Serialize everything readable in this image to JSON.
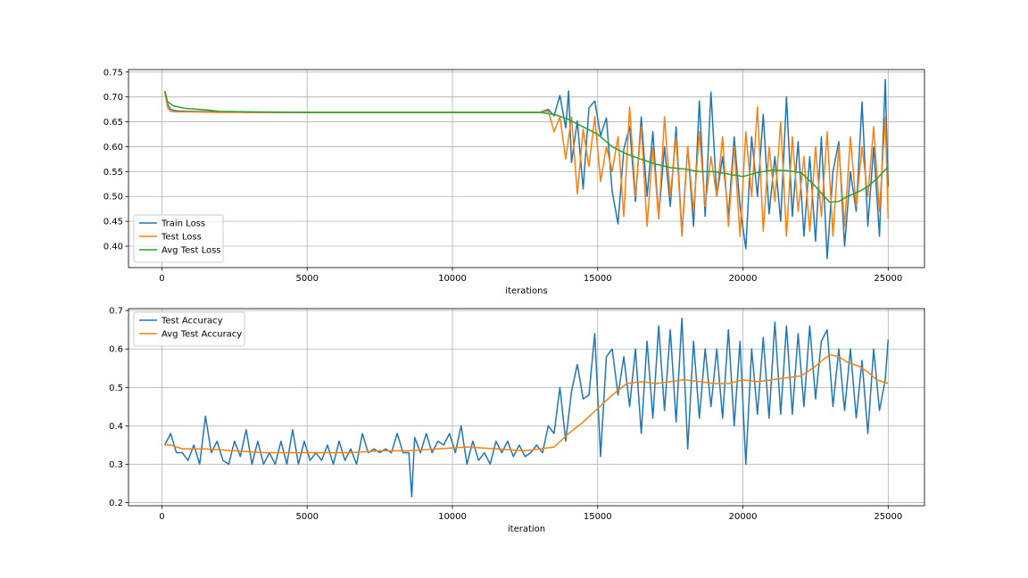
{
  "chart_data": [
    {
      "type": "line",
      "xlabel": "iterations",
      "ylabel": "",
      "xlim": [
        -1150,
        26250
      ],
      "ylim": [
        0.357,
        0.755
      ],
      "xticks": [
        0,
        5000,
        10000,
        15000,
        20000,
        25000
      ],
      "yticks": [
        0.4,
        0.45,
        0.5,
        0.55,
        0.6,
        0.65,
        0.7,
        0.75
      ],
      "ytick_labels": [
        "0.40",
        "0.45",
        "0.50",
        "0.55",
        "0.60",
        "0.65",
        "0.70",
        "0.75"
      ],
      "grid": true,
      "legend": "lower-left",
      "series": [
        {
          "name": "Train Loss",
          "color": "#1f77b4",
          "x": [
            100,
            200,
            300,
            500,
            1000,
            2000,
            3000,
            5000,
            7000,
            9000,
            11000,
            13000,
            13300,
            13500,
            13700,
            13900,
            14000,
            14100,
            14300,
            14500,
            14700,
            14900,
            15100,
            15300,
            15500,
            15700,
            15900,
            16100,
            16300,
            16500,
            16700,
            16900,
            17100,
            17300,
            17500,
            17700,
            17900,
            18100,
            18300,
            18500,
            18700,
            18900,
            19100,
            19300,
            19500,
            19700,
            19900,
            20100,
            20300,
            20500,
            20700,
            20900,
            21100,
            21300,
            21500,
            21700,
            21900,
            22100,
            22300,
            22500,
            22700,
            22900,
            23100,
            23300,
            23500,
            23700,
            23900,
            24100,
            24300,
            24500,
            24700,
            24900,
            25000
          ],
          "y": [
            0.71,
            0.685,
            0.675,
            0.672,
            0.671,
            0.67,
            0.669,
            0.669,
            0.669,
            0.669,
            0.669,
            0.669,
            0.675,
            0.662,
            0.703,
            0.638,
            0.712,
            0.568,
            0.652,
            0.515,
            0.678,
            0.692,
            0.622,
            0.658,
            0.51,
            0.445,
            0.595,
            0.64,
            0.49,
            0.66,
            0.5,
            0.63,
            0.457,
            0.6,
            0.48,
            0.64,
            0.425,
            0.6,
            0.44,
            0.692,
            0.46,
            0.71,
            0.5,
            0.58,
            0.46,
            0.62,
            0.48,
            0.395,
            0.62,
            0.5,
            0.665,
            0.465,
            0.58,
            0.45,
            0.7,
            0.46,
            0.61,
            0.42,
            0.58,
            0.41,
            0.62,
            0.375,
            0.55,
            0.61,
            0.4,
            0.55,
            0.47,
            0.69,
            0.44,
            0.6,
            0.42,
            0.735,
            0.52
          ]
        },
        {
          "name": "Test Loss",
          "color": "#ff7f0e",
          "x": [
            100,
            200,
            300,
            500,
            1000,
            2000,
            3000,
            5000,
            7000,
            9000,
            11000,
            13000,
            13300,
            13500,
            13700,
            13900,
            14100,
            14300,
            14500,
            14700,
            14900,
            15100,
            15300,
            15500,
            15700,
            15900,
            16100,
            16300,
            16500,
            16700,
            16900,
            17100,
            17300,
            17500,
            17700,
            17900,
            18100,
            18300,
            18500,
            18700,
            18900,
            19100,
            19300,
            19500,
            19700,
            19900,
            20100,
            20300,
            20500,
            20700,
            20900,
            21100,
            21300,
            21500,
            21700,
            21900,
            22100,
            22300,
            22500,
            22700,
            22900,
            23100,
            23300,
            23500,
            23700,
            23900,
            24100,
            24300,
            24500,
            24700,
            24900,
            25000
          ],
          "y": [
            0.71,
            0.678,
            0.671,
            0.67,
            0.67,
            0.669,
            0.669,
            0.669,
            0.669,
            0.669,
            0.669,
            0.669,
            0.672,
            0.63,
            0.66,
            0.575,
            0.66,
            0.505,
            0.635,
            0.56,
            0.66,
            0.53,
            0.6,
            0.55,
            0.62,
            0.46,
            0.68,
            0.5,
            0.64,
            0.44,
            0.6,
            0.455,
            0.66,
            0.5,
            0.62,
            0.42,
            0.6,
            0.47,
            0.63,
            0.48,
            0.58,
            0.5,
            0.62,
            0.44,
            0.6,
            0.42,
            0.63,
            0.5,
            0.68,
            0.43,
            0.6,
            0.49,
            0.65,
            0.42,
            0.62,
            0.47,
            0.58,
            0.43,
            0.6,
            0.46,
            0.63,
            0.42,
            0.6,
            0.44,
            0.62,
            0.48,
            0.6,
            0.5,
            0.64,
            0.47,
            0.66,
            0.455
          ]
        },
        {
          "name": "Avg Test Loss",
          "color": "#2ca02c",
          "x": [
            100,
            200,
            400,
            800,
            1500,
            2000,
            3000,
            5000,
            7000,
            9000,
            11000,
            13000,
            13500,
            14000,
            14500,
            15000,
            15500,
            16000,
            16500,
            17000,
            17500,
            18000,
            18500,
            19000,
            19500,
            20000,
            20500,
            21000,
            21500,
            22000,
            22500,
            22800,
            23000,
            23300,
            23600,
            24000,
            24300,
            24600,
            25000
          ],
          "y": [
            0.712,
            0.69,
            0.682,
            0.677,
            0.674,
            0.671,
            0.67,
            0.669,
            0.669,
            0.669,
            0.669,
            0.669,
            0.665,
            0.655,
            0.64,
            0.625,
            0.6,
            0.585,
            0.575,
            0.565,
            0.558,
            0.555,
            0.55,
            0.55,
            0.545,
            0.54,
            0.548,
            0.553,
            0.552,
            0.548,
            0.52,
            0.5,
            0.488,
            0.49,
            0.5,
            0.51,
            0.52,
            0.535,
            0.56
          ]
        }
      ]
    },
    {
      "type": "line",
      "xlabel": "iteration",
      "ylabel": "",
      "xlim": [
        -1150,
        26250
      ],
      "ylim": [
        0.192,
        0.705
      ],
      "xticks": [
        0,
        5000,
        10000,
        15000,
        20000,
        25000
      ],
      "yticks": [
        0.2,
        0.3,
        0.4,
        0.5,
        0.6,
        0.7
      ],
      "ytick_labels": [
        "0.2",
        "0.3",
        "0.4",
        "0.5",
        "0.6",
        "0.7"
      ],
      "grid": true,
      "legend": "upper-left",
      "series": [
        {
          "name": "Test Accuracy",
          "color": "#1f77b4",
          "x": [
            100,
            300,
            500,
            700,
            900,
            1100,
            1300,
            1500,
            1700,
            1900,
            2100,
            2300,
            2500,
            2700,
            2900,
            3100,
            3300,
            3500,
            3700,
            3900,
            4100,
            4300,
            4500,
            4700,
            4900,
            5100,
            5300,
            5500,
            5700,
            5900,
            6100,
            6300,
            6500,
            6700,
            6900,
            7100,
            7300,
            7500,
            7700,
            7900,
            8100,
            8300,
            8500,
            8600,
            8700,
            8900,
            9100,
            9300,
            9500,
            9700,
            9900,
            10100,
            10300,
            10500,
            10700,
            10900,
            11100,
            11300,
            11500,
            11700,
            11900,
            12100,
            12300,
            12500,
            12700,
            12900,
            13100,
            13300,
            13500,
            13700,
            13900,
            14100,
            14300,
            14500,
            14700,
            14900,
            15100,
            15300,
            15500,
            15700,
            15900,
            16100,
            16300,
            16500,
            16700,
            16900,
            17100,
            17300,
            17500,
            17700,
            17900,
            18100,
            18300,
            18500,
            18700,
            18900,
            19100,
            19300,
            19500,
            19700,
            19900,
            20100,
            20300,
            20500,
            20700,
            20900,
            21100,
            21300,
            21500,
            21700,
            21900,
            22100,
            22300,
            22500,
            22700,
            22900,
            23100,
            23300,
            23500,
            23700,
            23900,
            24100,
            24300,
            24500,
            24700,
            24900,
            25000
          ],
          "y": [
            0.35,
            0.38,
            0.33,
            0.33,
            0.31,
            0.35,
            0.3,
            0.425,
            0.33,
            0.36,
            0.31,
            0.3,
            0.36,
            0.32,
            0.39,
            0.3,
            0.36,
            0.3,
            0.33,
            0.3,
            0.36,
            0.3,
            0.39,
            0.3,
            0.36,
            0.31,
            0.33,
            0.31,
            0.35,
            0.3,
            0.36,
            0.31,
            0.34,
            0.3,
            0.38,
            0.33,
            0.34,
            0.33,
            0.34,
            0.33,
            0.38,
            0.33,
            0.33,
            0.215,
            0.37,
            0.33,
            0.38,
            0.33,
            0.36,
            0.35,
            0.38,
            0.33,
            0.4,
            0.3,
            0.36,
            0.31,
            0.33,
            0.3,
            0.36,
            0.33,
            0.36,
            0.32,
            0.35,
            0.32,
            0.33,
            0.35,
            0.33,
            0.4,
            0.38,
            0.5,
            0.36,
            0.49,
            0.56,
            0.47,
            0.48,
            0.64,
            0.32,
            0.58,
            0.6,
            0.48,
            0.58,
            0.45,
            0.6,
            0.38,
            0.62,
            0.42,
            0.66,
            0.44,
            0.65,
            0.41,
            0.68,
            0.34,
            0.62,
            0.42,
            0.6,
            0.45,
            0.6,
            0.42,
            0.65,
            0.4,
            0.62,
            0.3,
            0.6,
            0.43,
            0.63,
            0.42,
            0.67,
            0.43,
            0.66,
            0.43,
            0.64,
            0.45,
            0.66,
            0.47,
            0.62,
            0.65,
            0.45,
            0.6,
            0.44,
            0.6,
            0.42,
            0.57,
            0.38,
            0.6,
            0.44,
            0.52,
            0.625
          ]
        },
        {
          "name": "Avg Test Accuracy",
          "color": "#ff7f0e",
          "x": [
            100,
            300,
            700,
            1500,
            2500,
            3500,
            4500,
            5500,
            6500,
            7500,
            8500,
            9500,
            10500,
            11500,
            12500,
            13500,
            14000,
            14500,
            15000,
            15500,
            16000,
            16500,
            17000,
            17500,
            18000,
            18500,
            19000,
            19500,
            20000,
            20500,
            21000,
            21500,
            22000,
            22500,
            22800,
            23000,
            23300,
            23600,
            24000,
            24300,
            24600,
            25000
          ],
          "y": [
            0.35,
            0.35,
            0.34,
            0.34,
            0.335,
            0.33,
            0.33,
            0.33,
            0.33,
            0.335,
            0.335,
            0.34,
            0.345,
            0.34,
            0.335,
            0.345,
            0.38,
            0.41,
            0.445,
            0.48,
            0.51,
            0.515,
            0.51,
            0.515,
            0.52,
            0.515,
            0.51,
            0.51,
            0.52,
            0.515,
            0.52,
            0.525,
            0.53,
            0.555,
            0.575,
            0.585,
            0.58,
            0.565,
            0.555,
            0.54,
            0.52,
            0.51
          ]
        }
      ]
    }
  ]
}
